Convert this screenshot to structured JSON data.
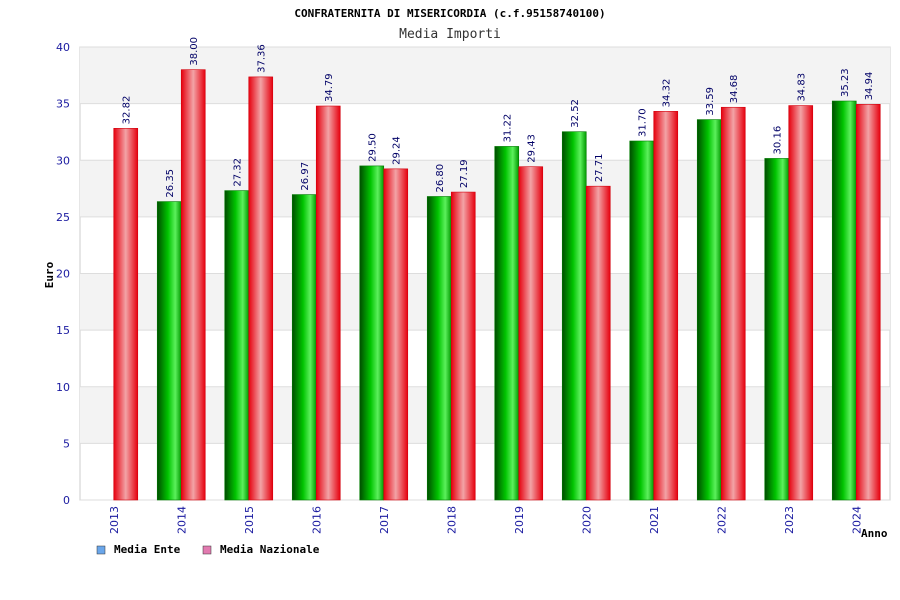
{
  "chart_data": {
    "type": "bar",
    "title": "CONFRATERNITA DI MISERICORDIA (c.f.95158740100)",
    "subtitle": "Media Importi",
    "xlabel": "Anno",
    "ylabel": "Euro",
    "ylim": [
      0,
      40
    ],
    "yticks": [
      "0",
      "5",
      "10",
      "15",
      "20",
      "25",
      "30",
      "35",
      "40"
    ],
    "grid": true,
    "legend_position": "bottom-left",
    "categories": [
      "2013",
      "2014",
      "2015",
      "2016",
      "2017",
      "2018",
      "2019",
      "2020",
      "2021",
      "2022",
      "2023",
      "2024"
    ],
    "series": [
      {
        "name": "Media Ente",
        "color": "#00a000",
        "legend_color": "#6aa6ea",
        "values": [
          null,
          26.35,
          27.32,
          26.97,
          29.5,
          26.8,
          31.22,
          32.52,
          31.7,
          33.59,
          30.16,
          35.23
        ],
        "labels": [
          "",
          "26.35",
          "27.32",
          "26.97",
          "29.50",
          "26.80",
          "31.22",
          "32.52",
          "31.70",
          "33.59",
          "30.16",
          "35.23"
        ]
      },
      {
        "name": "Media Nazionale",
        "color": "#e8202a",
        "legend_color": "#e27ab0",
        "values": [
          32.82,
          38.0,
          37.36,
          34.79,
          29.24,
          27.19,
          29.43,
          27.71,
          34.32,
          34.68,
          34.83,
          34.94
        ],
        "labels": [
          "32.82",
          "38.00",
          "37.36",
          "34.79",
          "29.24",
          "27.19",
          "29.43",
          "27.71",
          "34.32",
          "34.68",
          "34.83",
          "34.94"
        ]
      }
    ]
  }
}
